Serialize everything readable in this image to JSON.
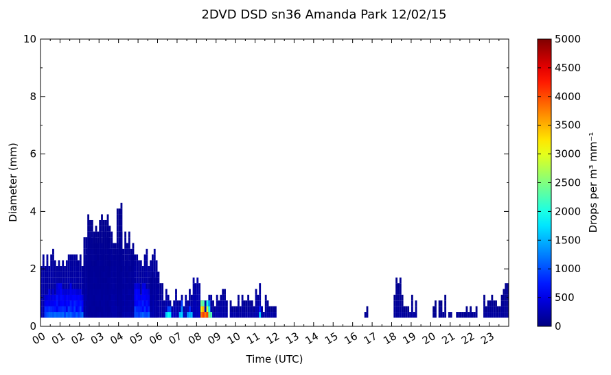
{
  "chart_data": {
    "type": "heatmap",
    "title": "2DVD DSD sn36 Amanda Park 12/02/15",
    "xlabel": "Time (UTC)",
    "ylabel": "Diameter (mm)",
    "xlim": [
      0,
      24
    ],
    "ylim": [
      0,
      10
    ],
    "x_ticks": [
      "00",
      "01",
      "02",
      "03",
      "04",
      "05",
      "06",
      "07",
      "08",
      "09",
      "10",
      "11",
      "12",
      "13",
      "14",
      "15",
      "16",
      "17",
      "18",
      "19",
      "20",
      "21",
      "22",
      "23"
    ],
    "y_ticks": [
      0,
      2,
      4,
      6,
      8,
      10
    ],
    "colorbar": {
      "label": "Drops per m³ mm⁻¹",
      "range": [
        0,
        5000
      ],
      "ticks": [
        0,
        500,
        1000,
        1500,
        2000,
        2500,
        3000,
        3500,
        4000,
        4500,
        5000
      ],
      "colormap": "jet"
    },
    "grid": false,
    "cell_height_mm": 0.2,
    "cell_hours": 0.1,
    "segments": [
      {
        "t0": 0.0,
        "t1": 6.0,
        "dtop": 2.4,
        "value": 250
      },
      {
        "t0": 0.2,
        "t1": 5.8,
        "dtop": 1.3,
        "value": 850
      },
      {
        "t0": 0.2,
        "t1": 5.8,
        "dtop": 0.8,
        "value": 1050
      },
      {
        "t0": 2.2,
        "t1": 4.8,
        "dtop": 3.0,
        "value": 180
      },
      {
        "t0": 2.4,
        "t1": 3.6,
        "dtop": 3.6,
        "value": 140
      },
      {
        "t0": 3.9,
        "t1": 4.2,
        "dtop": 4.1,
        "value": 140
      },
      {
        "t0": 5.6,
        "t1": 6.3,
        "dtop": 1.7,
        "value": 200
      },
      {
        "t0": 6.3,
        "t1": 8.8,
        "dtop": 1.0,
        "value": 280
      },
      {
        "t0": 6.4,
        "t1": 6.7,
        "dtop": 0.6,
        "value": 1800
      },
      {
        "t0": 7.1,
        "t1": 7.3,
        "dtop": 0.6,
        "value": 1700
      },
      {
        "t0": 7.5,
        "t1": 7.8,
        "dtop": 0.6,
        "value": 1500
      },
      {
        "t0": 7.8,
        "t1": 8.2,
        "dtop": 1.5,
        "value": 300
      },
      {
        "t0": 8.2,
        "t1": 8.4,
        "dtop": 1.0,
        "value": 4200
      },
      {
        "t0": 8.4,
        "t1": 8.6,
        "dtop": 0.6,
        "value": 3800
      },
      {
        "t0": 8.6,
        "t1": 8.8,
        "dtop": 0.8,
        "value": 2300
      },
      {
        "t0": 8.8,
        "t1": 9.0,
        "dtop": 0.6,
        "value": 200
      },
      {
        "t0": 9.0,
        "t1": 9.6,
        "dtop": 1.1,
        "value": 220
      },
      {
        "t0": 9.7,
        "t1": 10.5,
        "dtop": 0.9,
        "value": 200
      },
      {
        "t0": 10.5,
        "t1": 11.0,
        "dtop": 0.8,
        "value": 180
      },
      {
        "t0": 11.0,
        "t1": 11.3,
        "dtop": 1.2,
        "value": 250
      },
      {
        "t0": 11.2,
        "t1": 11.4,
        "dtop": 0.6,
        "value": 1500
      },
      {
        "t0": 11.3,
        "t1": 12.1,
        "dtop": 0.8,
        "value": 180
      },
      {
        "t0": 16.6,
        "t1": 16.8,
        "dtop": 0.7,
        "value": 120
      },
      {
        "t0": 18.1,
        "t1": 18.5,
        "dtop": 1.4,
        "value": 150
      },
      {
        "t0": 18.5,
        "t1": 19.3,
        "dtop": 0.8,
        "value": 150
      },
      {
        "t0": 20.1,
        "t1": 20.3,
        "dtop": 0.8,
        "value": 100
      },
      {
        "t0": 20.4,
        "t1": 20.8,
        "dtop": 0.8,
        "value": 120
      },
      {
        "t0": 20.9,
        "t1": 21.1,
        "dtop": 0.6,
        "value": 100
      },
      {
        "t0": 21.3,
        "t1": 22.0,
        "dtop": 0.6,
        "value": 120
      },
      {
        "t0": 22.0,
        "t1": 22.4,
        "dtop": 0.7,
        "value": 120
      },
      {
        "t0": 22.7,
        "t1": 23.6,
        "dtop": 0.9,
        "value": 150
      },
      {
        "t0": 23.6,
        "t1": 24.0,
        "dtop": 1.3,
        "value": 150
      }
    ]
  }
}
